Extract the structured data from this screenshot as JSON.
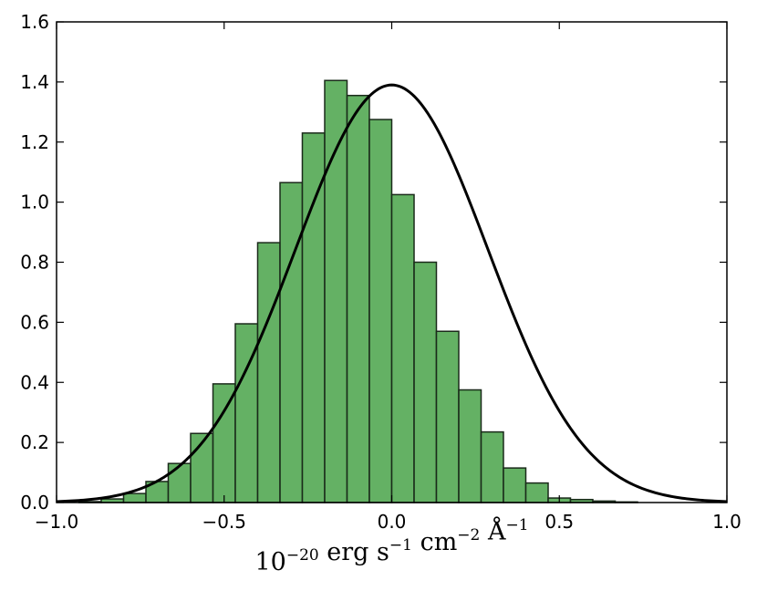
{
  "chart_data": {
    "type": "bar",
    "bin_edges": [
      -1.0,
      -0.9333,
      -0.8667,
      -0.8,
      -0.7333,
      -0.6667,
      -0.6,
      -0.5333,
      -0.4667,
      -0.4,
      -0.3333,
      -0.2667,
      -0.2,
      -0.1333,
      -0.0667,
      0.0,
      0.0667,
      0.1333,
      0.2,
      0.2667,
      0.3333,
      0.4,
      0.4667,
      0.5333,
      0.6,
      0.6667,
      0.7333,
      0.8,
      0.8667,
      0.9333,
      1.0
    ],
    "values": [
      0.0,
      0.003,
      0.012,
      0.03,
      0.07,
      0.13,
      0.23,
      0.395,
      0.595,
      0.865,
      1.065,
      1.23,
      1.405,
      1.355,
      1.275,
      1.025,
      0.8,
      0.57,
      0.375,
      0.235,
      0.115,
      0.065,
      0.015,
      0.01,
      0.005,
      0.002,
      0.0,
      0.0,
      0.0,
      0.0
    ],
    "curve": {
      "type": "gaussian",
      "mean": 0.0,
      "sigma": 0.287,
      "peak": 1.39
    },
    "xlim": [
      -1.0,
      1.0
    ],
    "ylim": [
      0.0,
      1.6
    ],
    "xticks": [
      -1.0,
      -0.5,
      0.0,
      0.5,
      1.0
    ],
    "xtick_labels": [
      "−1.0",
      "−0.5",
      "0.0",
      "0.5",
      "1.0"
    ],
    "yticks": [
      0.0,
      0.2,
      0.4,
      0.6,
      0.8,
      1.0,
      1.2,
      1.4,
      1.6
    ],
    "ytick_labels": [
      "0.0",
      "0.2",
      "0.4",
      "0.6",
      "0.8",
      "1.0",
      "1.2",
      "1.4",
      "1.6"
    ],
    "xlabel": {
      "parts": [
        {
          "text": "10",
          "sup": "−20"
        },
        {
          "text": " erg s",
          "sup": "−1"
        },
        {
          "text": " cm",
          "sup": "−2"
        },
        {
          "text": " Å",
          "sup": "−1"
        }
      ]
    },
    "ylabel": "",
    "title": "",
    "grid": false,
    "colors": {
      "bar_fill": "#4ea64e",
      "bar_edge": "#1a2a1a",
      "curve": "#000000"
    }
  }
}
